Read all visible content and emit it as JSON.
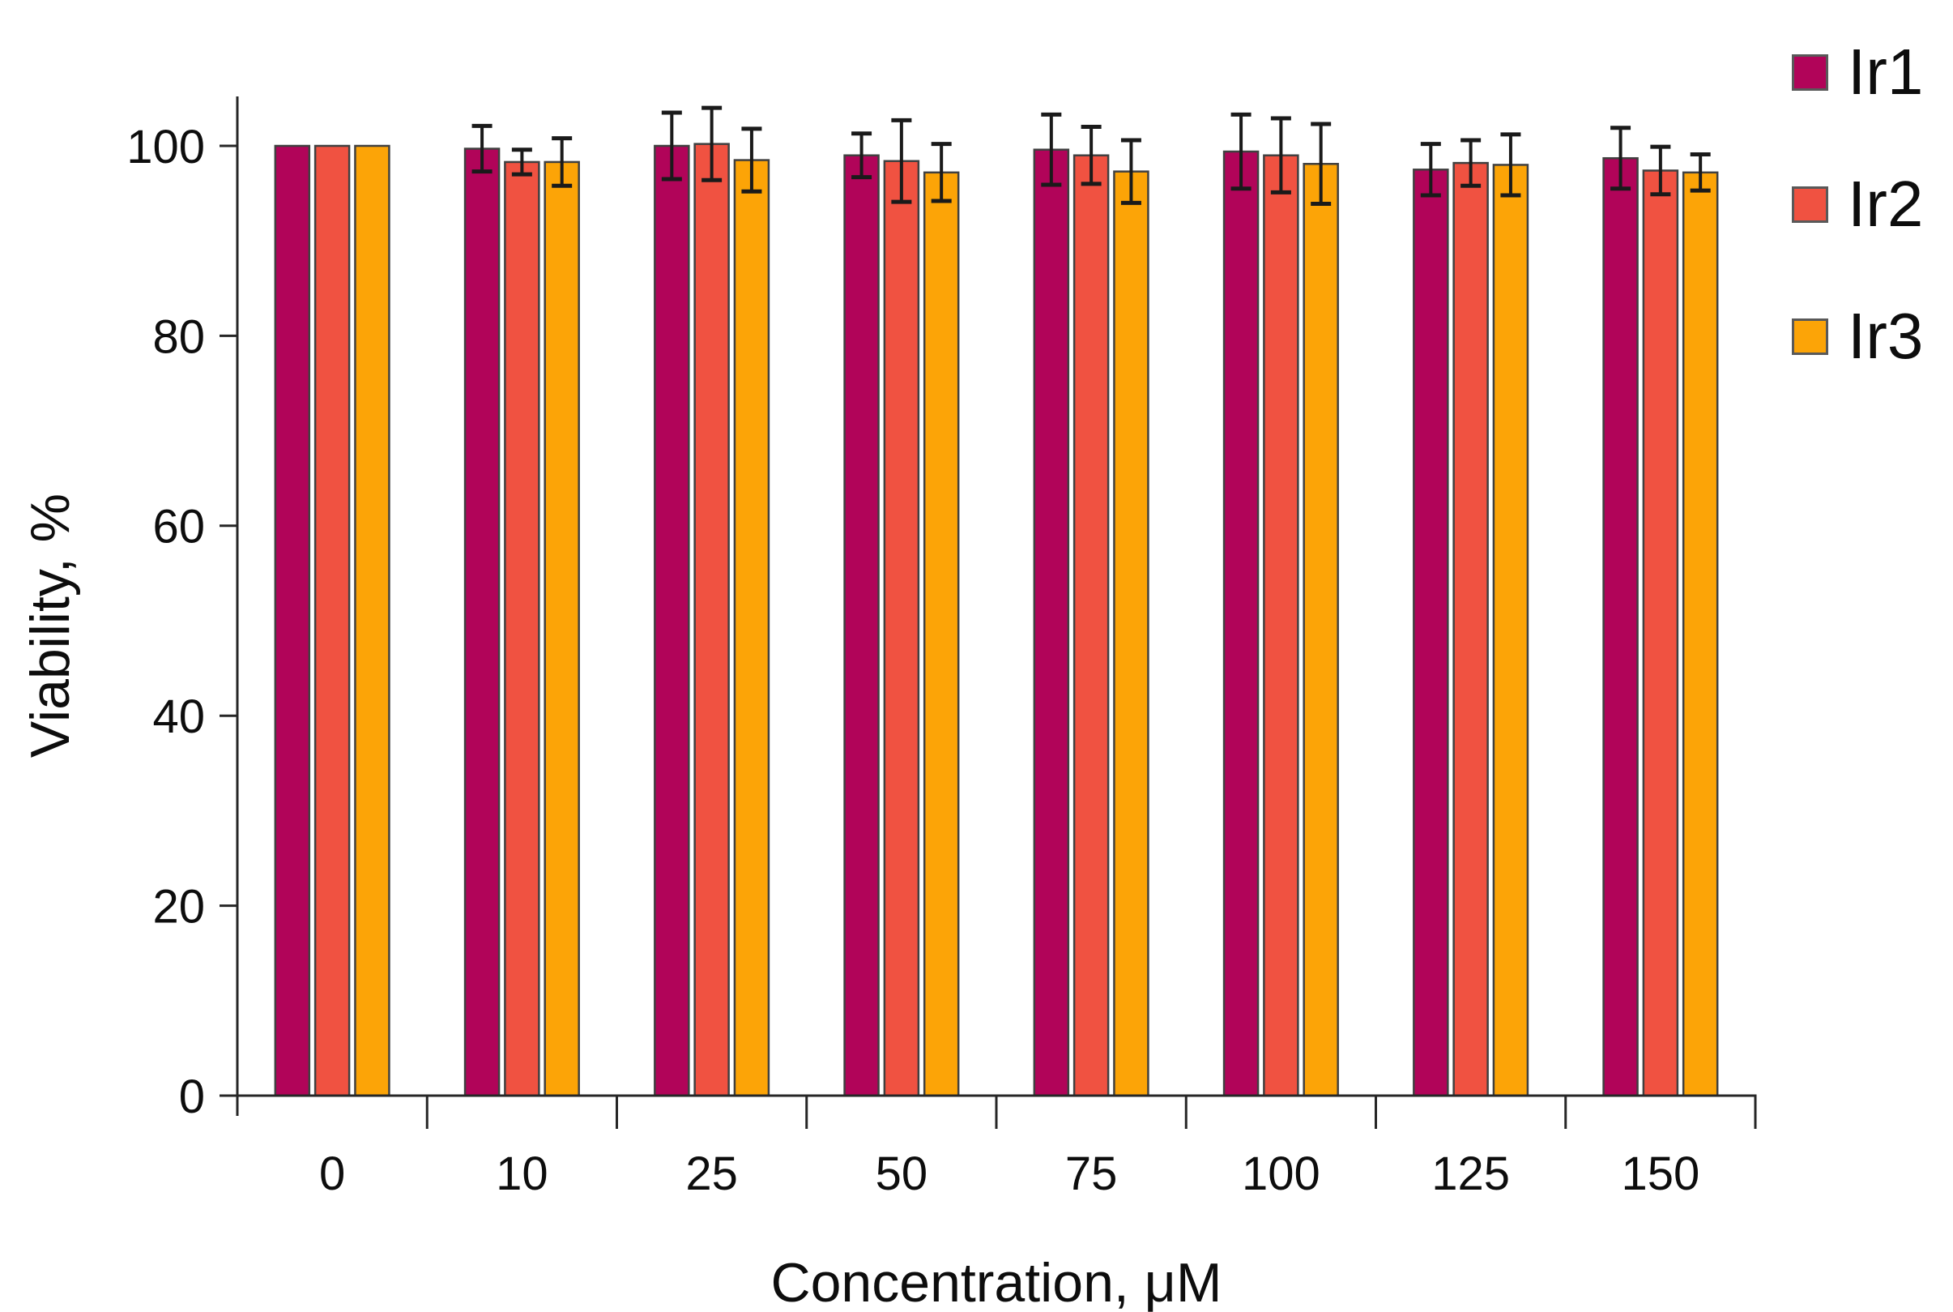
{
  "chart_data": {
    "type": "bar",
    "title": "",
    "xlabel": "Concentration, μM",
    "ylabel": "Viability, %",
    "categories": [
      "0",
      "10",
      "25",
      "50",
      "75",
      "100",
      "125",
      "150"
    ],
    "series": [
      {
        "name": "Ir1",
        "color": "#B10459",
        "values": [
          100,
          99.7,
          100.0,
          99.0,
          99.6,
          99.4,
          97.5,
          98.7
        ],
        "errors": [
          0,
          2.4,
          3.5,
          2.3,
          3.7,
          3.9,
          2.7,
          3.2
        ]
      },
      {
        "name": "Ir2",
        "color": "#F05241",
        "values": [
          100,
          98.3,
          100.2,
          98.4,
          99.0,
          99.0,
          98.2,
          97.4
        ],
        "errors": [
          0,
          1.3,
          3.8,
          4.3,
          3.0,
          3.9,
          2.4,
          2.5
        ]
      },
      {
        "name": "Ir3",
        "color": "#FCA407",
        "values": [
          100,
          98.3,
          98.5,
          97.2,
          97.3,
          98.1,
          98.0,
          97.2
        ],
        "errors": [
          0,
          2.5,
          3.3,
          3.0,
          3.3,
          4.2,
          3.2,
          1.9
        ]
      }
    ],
    "ylim": [
      0,
      100
    ],
    "yticks": [
      0,
      20,
      40,
      60,
      80,
      100
    ],
    "grid": false,
    "legend_position": "top-right",
    "bar_outline_color": "#404040",
    "error_bar_color": "#1a1a1a",
    "axis_color": "#262626",
    "text_color": "#0d0d0d"
  }
}
